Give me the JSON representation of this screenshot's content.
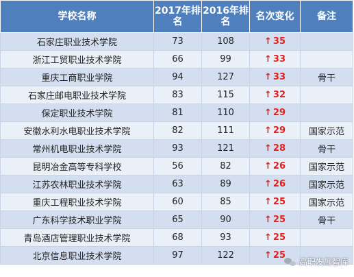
{
  "headers": {
    "school": "学校名称",
    "rank2017": "2017年排名",
    "rank2016": "2016年排名",
    "change": "名次变化",
    "note": "备注"
  },
  "arrow_color": "#e3201b",
  "header_color": "#4f80bd",
  "rows": [
    {
      "school": "石家庄职业技术学院",
      "rank2017": "73",
      "rank2016": "108",
      "change": "35",
      "note": ""
    },
    {
      "school": "浙江工贸职业技术学院",
      "rank2017": "66",
      "rank2016": "99",
      "change": "33",
      "note": ""
    },
    {
      "school": "重庆工商职业学院",
      "rank2017": "94",
      "rank2016": "127",
      "change": "33",
      "note": "骨干"
    },
    {
      "school": "石家庄邮电职业技术学院",
      "rank2017": "83",
      "rank2016": "115",
      "change": "32",
      "note": ""
    },
    {
      "school": "保定职业技术学院",
      "rank2017": "81",
      "rank2016": "110",
      "change": "29",
      "note": ""
    },
    {
      "school": "安徽水利水电职业技术学院",
      "rank2017": "82",
      "rank2016": "111",
      "change": "29",
      "note": "国家示范"
    },
    {
      "school": "常州机电职业技术学院",
      "rank2017": "93",
      "rank2016": "121",
      "change": "28",
      "note": "骨干"
    },
    {
      "school": "昆明冶金高等专科学校",
      "rank2017": "56",
      "rank2016": "82",
      "change": "26",
      "note": "国家示范"
    },
    {
      "school": "江苏农林职业技术学院",
      "rank2017": "63",
      "rank2016": "89",
      "change": "26",
      "note": "国家示范"
    },
    {
      "school": "重庆工程职业技术学院",
      "rank2017": "60",
      "rank2016": "85",
      "change": "25",
      "note": "国家示范"
    },
    {
      "school": "广东科学技术职业学院",
      "rank2017": "65",
      "rank2016": "90",
      "change": "25",
      "note": "骨干"
    },
    {
      "school": "青岛酒店管理职业技术学院",
      "rank2017": "68",
      "rank2016": "93",
      "change": "25",
      "note": ""
    },
    {
      "school": "北京信息职业技术学院",
      "rank2017": "97",
      "rank2016": "122",
      "change": "25",
      "note": ""
    }
  ],
  "watermark": {
    "icon": "wechat-icon",
    "text": "高职发展智库"
  }
}
